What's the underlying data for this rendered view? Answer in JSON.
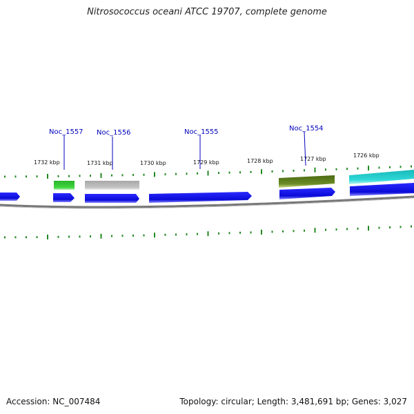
{
  "title": "Nitrosococcus oceani ATCC 19707, complete genome",
  "footer": {
    "accession": "Accession: NC_007484",
    "stats": "Topology: circular; Length: 3,481,691 bp; Genes: 3,027"
  },
  "kbp_labels": [
    "1732 kbp",
    "1731 kbp",
    "1730 kbp",
    "1729 kbp",
    "1728 kbp",
    "1727 kbp",
    "1726 kbp"
  ],
  "gene_labels": [
    "Noc_1557",
    "Noc_1556",
    "Noc_1555",
    "Noc_1554"
  ],
  "feature_colors": {
    "cds": "#1010e0",
    "green": "#33cc33",
    "grey": "#b8b8b8",
    "olive": "#5a7a1a",
    "cyan": "#22cccc",
    "tick": "#228822",
    "backbone": "#777777",
    "label": "#0000bb"
  }
}
